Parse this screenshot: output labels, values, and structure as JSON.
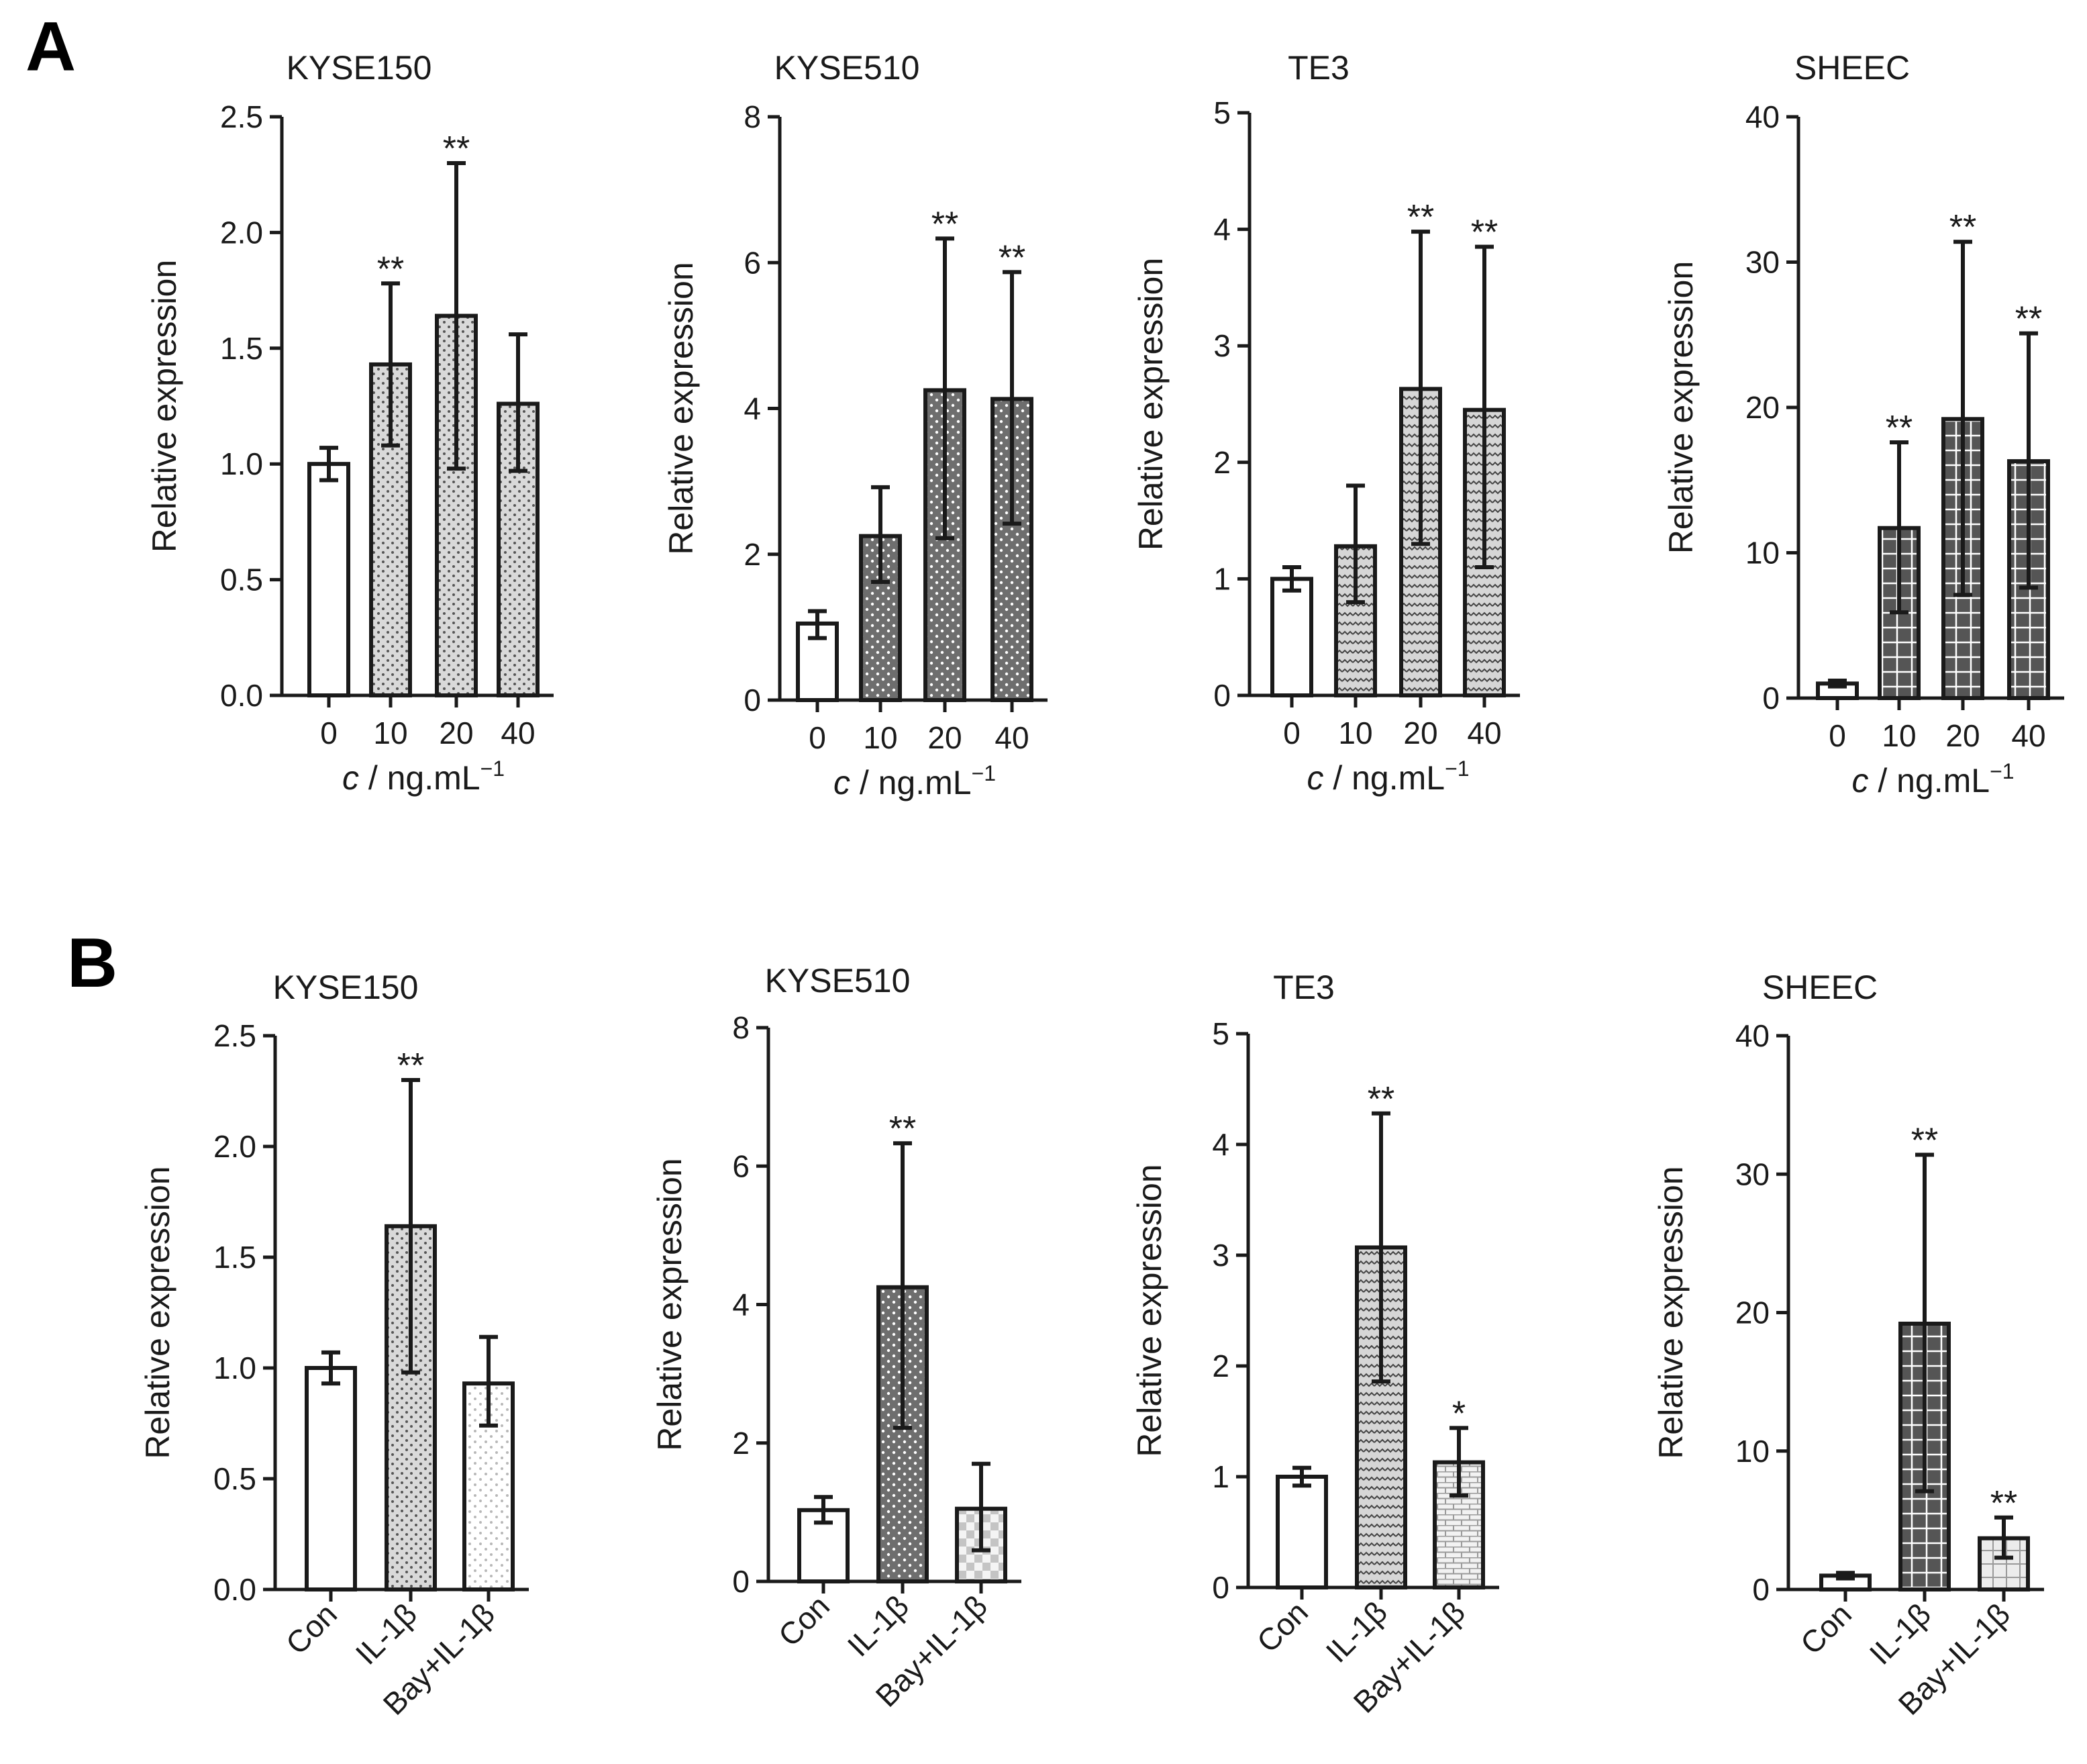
{
  "panels": [
    {
      "letter": "A",
      "x_title_prefix": "c",
      "x_title_suffix": " / ng.mL",
      "x_title_sup": "−1",
      "charts": [
        {
          "type": "bar",
          "title": "KYSE150",
          "ylabel": "Relative expression",
          "ylim": [
            0,
            2.5
          ],
          "yticks": [
            "0.0",
            "0.5",
            "1.0",
            "1.5",
            "2.0",
            "2.5"
          ],
          "categories": [
            "0",
            "10",
            "20",
            "40"
          ],
          "values": [
            1.0,
            1.43,
            1.64,
            1.26
          ],
          "err_low": [
            0.93,
            1.08,
            0.98,
            0.97
          ],
          "err_high": [
            1.07,
            1.78,
            2.3,
            1.56
          ],
          "sig": [
            "",
            "**",
            "**",
            ""
          ],
          "fills": [
            "white",
            "dots-light",
            "dots-light",
            "dots-light"
          ]
        },
        {
          "type": "bar",
          "title": "KYSE510",
          "ylabel": "Relative expression",
          "ylim": [
            0,
            8
          ],
          "yticks": [
            "0",
            "2",
            "4",
            "6",
            "8"
          ],
          "categories": [
            "0",
            "10",
            "20",
            "40"
          ],
          "values": [
            1.05,
            2.25,
            4.25,
            4.13
          ],
          "err_low": [
            0.85,
            1.62,
            2.22,
            2.42
          ],
          "err_high": [
            1.22,
            2.92,
            6.33,
            5.87
          ],
          "sig": [
            "",
            "",
            "**",
            "**"
          ],
          "fills": [
            "white",
            "dots-dark",
            "dots-dark",
            "dots-dark"
          ]
        },
        {
          "type": "bar",
          "title": "TE3",
          "ylabel": "Relative expression",
          "ylim": [
            0,
            5
          ],
          "yticks": [
            "0",
            "1",
            "2",
            "3",
            "4",
            "5"
          ],
          "categories": [
            "0",
            "10",
            "20",
            "40"
          ],
          "values": [
            1.0,
            1.28,
            2.63,
            2.45
          ],
          "err_low": [
            0.9,
            0.8,
            1.3,
            1.1
          ],
          "err_high": [
            1.1,
            1.8,
            3.98,
            3.85
          ],
          "sig": [
            "",
            "",
            "**",
            "**"
          ],
          "fills": [
            "white",
            "wave",
            "wave",
            "wave"
          ]
        },
        {
          "type": "bar",
          "title": "SHEEC",
          "ylabel": "Relative expression",
          "ylim": [
            0,
            40
          ],
          "yticks": [
            "0",
            "10",
            "20",
            "30",
            "40"
          ],
          "categories": [
            "0",
            "10",
            "20",
            "40"
          ],
          "values": [
            1.0,
            11.7,
            19.2,
            16.3
          ],
          "err_low": [
            0.8,
            5.9,
            7.1,
            7.6
          ],
          "err_high": [
            1.2,
            17.6,
            31.4,
            25.1
          ],
          "sig": [
            "",
            "**",
            "**",
            "**"
          ],
          "fills": [
            "white",
            "grid-dark",
            "grid-dark",
            "grid-dark"
          ]
        }
      ]
    },
    {
      "letter": "B",
      "charts": [
        {
          "type": "bar",
          "title": "KYSE150",
          "ylabel": "Relative expression",
          "ylim": [
            0,
            2.5
          ],
          "yticks": [
            "0.0",
            "0.5",
            "1.0",
            "1.5",
            "2.0",
            "2.5"
          ],
          "categories": [
            "Con",
            "IL-1β",
            "Bay+IL-1β"
          ],
          "values": [
            1.0,
            1.64,
            0.93
          ],
          "err_low": [
            0.93,
            0.98,
            0.74
          ],
          "err_high": [
            1.07,
            2.3,
            1.14
          ],
          "sig": [
            "",
            "**",
            ""
          ],
          "fills": [
            "white",
            "dots-light",
            "dots-faint"
          ]
        },
        {
          "type": "bar",
          "title": "KYSE510",
          "ylabel": "Relative expression",
          "ylim": [
            0,
            8
          ],
          "yticks": [
            "0",
            "2",
            "4",
            "6",
            "8"
          ],
          "categories": [
            "Con",
            "IL-1β",
            "Bay+IL-1β"
          ],
          "values": [
            1.03,
            4.25,
            1.05
          ],
          "err_low": [
            0.85,
            2.22,
            0.45
          ],
          "err_high": [
            1.22,
            6.33,
            1.7
          ],
          "sig": [
            "",
            "**",
            ""
          ],
          "fills": [
            "white",
            "dots-dark",
            "checker"
          ]
        },
        {
          "type": "bar",
          "title": "TE3",
          "ylabel": "Relative expression",
          "ylim": [
            0,
            5
          ],
          "yticks": [
            "0",
            "1",
            "2",
            "3",
            "4",
            "5"
          ],
          "categories": [
            "Con",
            "IL-1β",
            "Bay+IL-1β"
          ],
          "values": [
            1.0,
            3.07,
            1.13
          ],
          "err_low": [
            0.92,
            1.86,
            0.83
          ],
          "err_high": [
            1.08,
            4.28,
            1.44
          ],
          "sig": [
            "",
            "**",
            "*"
          ],
          "fills": [
            "white",
            "wave",
            "brick"
          ]
        },
        {
          "type": "bar",
          "title": "SHEEC",
          "ylabel": "Relative expression",
          "ylim": [
            0,
            40
          ],
          "yticks": [
            "0",
            "10",
            "20",
            "30",
            "40"
          ],
          "categories": [
            "Con",
            "IL-1β",
            "Bay+IL-1β"
          ],
          "values": [
            1.0,
            19.2,
            3.7
          ],
          "err_low": [
            0.8,
            7.1,
            2.3
          ],
          "err_high": [
            1.2,
            31.4,
            5.2
          ],
          "sig": [
            "",
            "**",
            "**"
          ],
          "fills": [
            "white",
            "grid-dark",
            "grid-light"
          ]
        }
      ]
    }
  ]
}
